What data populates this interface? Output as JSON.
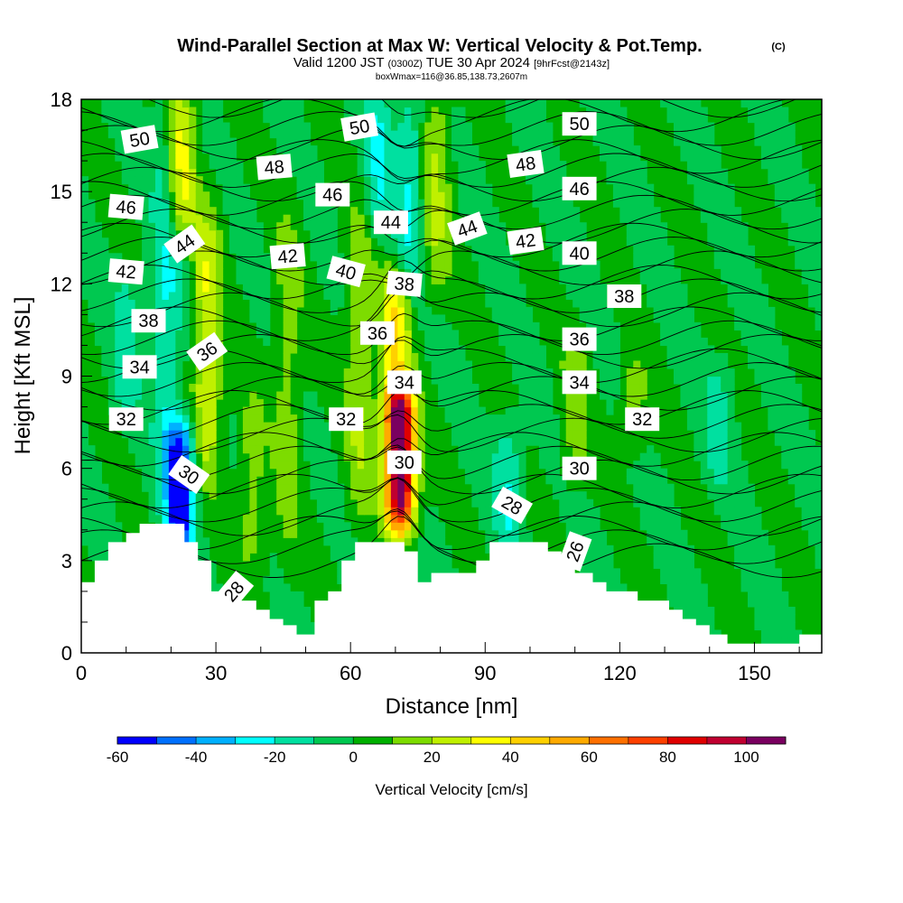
{
  "chart_data": {
    "type": "contour",
    "title": "Wind-Parallel Section at Max W: Vertical Velocity & Pot.Temp.",
    "title_mark": "(C)",
    "subtitle_parts": [
      "Valid 1200 JST",
      "(0300Z)",
      "TUE 30 Apr 2024",
      "[9hrFcst@2143z]"
    ],
    "subtitle2": "boxWmax=116@36.85,138.73,2607m",
    "xlabel": "Distance [nm]",
    "ylabel": "Height [Kft MSL]",
    "xlim": [
      0,
      165
    ],
    "ylim": [
      0,
      18
    ],
    "xticks": [
      0,
      30,
      60,
      90,
      120,
      150
    ],
    "yticks": [
      0,
      3,
      6,
      9,
      12,
      15,
      18
    ],
    "colorbar": {
      "title": "Vertical Velocity [cm/s]",
      "levels": [
        -60,
        -50,
        -40,
        -30,
        -20,
        -10,
        0,
        10,
        20,
        30,
        40,
        50,
        60,
        70,
        80,
        90,
        100,
        110
      ],
      "colors": [
        "#0000ff",
        "#0070ff",
        "#00b0ff",
        "#00ffff",
        "#00e0a0",
        "#00c850",
        "#00b000",
        "#7ddc00",
        "#c0f000",
        "#ffff00",
        "#ffd000",
        "#ffaa00",
        "#ff7000",
        "#ff4000",
        "#e00000",
        "#c00030",
        "#7a0060"
      ],
      "tick_values": [
        -60,
        -40,
        -20,
        0,
        20,
        40,
        60,
        80,
        100
      ]
    },
    "vertical_velocity_features": [
      {
        "x": 22,
        "z0": 14,
        "z1": 18,
        "w": 35
      },
      {
        "x": 28,
        "z0": 6,
        "z1": 14,
        "w": 30
      },
      {
        "x": 10,
        "z0": 8,
        "z1": 12,
        "w": -15
      },
      {
        "x": 22,
        "z0": 3.5,
        "z1": 7,
        "w": -60
      },
      {
        "x": 19,
        "z0": 6,
        "z1": 18,
        "w": -20
      },
      {
        "x": 46,
        "z0": 3.5,
        "z1": 14,
        "w": 15
      },
      {
        "x": 38,
        "z0": 3,
        "z1": 8,
        "w": 15
      },
      {
        "x": 62,
        "z0": 5,
        "z1": 14,
        "w": 20
      },
      {
        "x": 71,
        "z0": 4.5,
        "z1": 8,
        "w": 116
      },
      {
        "x": 70,
        "z0": 8,
        "z1": 12,
        "w": 40
      },
      {
        "x": 73,
        "z0": 12,
        "z1": 18,
        "w": -20
      },
      {
        "x": 79,
        "z0": 12,
        "z1": 18,
        "w": 20
      },
      {
        "x": 66,
        "z0": 14,
        "z1": 18,
        "w": -20
      },
      {
        "x": 95,
        "z0": 4,
        "z1": 7,
        "w": -20
      },
      {
        "x": 110,
        "z0": 6,
        "z1": 10,
        "w": 15
      },
      {
        "x": 123,
        "z0": 7,
        "z1": 9,
        "w": 15
      },
      {
        "x": 142,
        "z0": 6,
        "z1": 9,
        "w": -15
      }
    ],
    "isentropes": [
      26,
      28,
      30,
      32,
      34,
      36,
      38,
      40,
      42,
      44,
      46,
      48,
      50
    ],
    "isentrope_labels": [
      {
        "label": "50",
        "x": 13,
        "z": 16.7,
        "angle": -10
      },
      {
        "label": "50",
        "x": 62,
        "z": 17.1,
        "angle": -10
      },
      {
        "label": "50",
        "x": 111,
        "z": 17.2,
        "angle": 0
      },
      {
        "label": "48",
        "x": 43,
        "z": 15.8,
        "angle": -5
      },
      {
        "label": "48",
        "x": 99,
        "z": 15.9,
        "angle": -8
      },
      {
        "label": "46",
        "x": 10,
        "z": 14.5,
        "angle": 5
      },
      {
        "label": "46",
        "x": 56,
        "z": 14.9,
        "angle": 0
      },
      {
        "label": "46",
        "x": 111,
        "z": 15.1,
        "angle": 0
      },
      {
        "label": "44",
        "x": 23,
        "z": 13.3,
        "angle": -35
      },
      {
        "label": "44",
        "x": 69,
        "z": 14.0,
        "angle": 0
      },
      {
        "label": "44",
        "x": 86,
        "z": 13.8,
        "angle": -20
      },
      {
        "label": "42",
        "x": 10,
        "z": 12.4,
        "angle": 5
      },
      {
        "label": "42",
        "x": 46,
        "z": 12.9,
        "angle": -5
      },
      {
        "label": "42",
        "x": 99,
        "z": 13.4,
        "angle": -8
      },
      {
        "label": "40",
        "x": 59,
        "z": 12.4,
        "angle": 15
      },
      {
        "label": "40",
        "x": 111,
        "z": 13.0,
        "angle": 0
      },
      {
        "label": "38",
        "x": 15,
        "z": 10.8,
        "angle": 0
      },
      {
        "label": "38",
        "x": 72,
        "z": 12.0,
        "angle": 5
      },
      {
        "label": "38",
        "x": 121,
        "z": 11.6,
        "angle": 0
      },
      {
        "label": "36",
        "x": 28,
        "z": 9.8,
        "angle": -35
      },
      {
        "label": "36",
        "x": 66,
        "z": 10.4,
        "angle": 0
      },
      {
        "label": "36",
        "x": 111,
        "z": 10.2,
        "angle": 0
      },
      {
        "label": "34",
        "x": 13,
        "z": 9.3,
        "angle": 0
      },
      {
        "label": "34",
        "x": 72,
        "z": 8.8,
        "angle": 0
      },
      {
        "label": "34",
        "x": 111,
        "z": 8.8,
        "angle": 0
      },
      {
        "label": "32",
        "x": 10,
        "z": 7.6,
        "angle": 0
      },
      {
        "label": "32",
        "x": 59,
        "z": 7.6,
        "angle": 0
      },
      {
        "label": "32",
        "x": 125,
        "z": 7.6,
        "angle": 0
      },
      {
        "label": "30",
        "x": 24,
        "z": 5.8,
        "angle": 35
      },
      {
        "label": "30",
        "x": 72,
        "z": 6.2,
        "angle": 0
      },
      {
        "label": "30",
        "x": 111,
        "z": 6.0,
        "angle": 0
      },
      {
        "label": "28",
        "x": 96,
        "z": 4.8,
        "angle": 30
      },
      {
        "label": "28",
        "x": 34,
        "z": 2.0,
        "angle": -50
      },
      {
        "label": "26",
        "x": 110,
        "z": 3.3,
        "angle": -70
      }
    ],
    "terrain_kft": [
      [
        0,
        2.3
      ],
      [
        3,
        2.3
      ],
      [
        3,
        3.0
      ],
      [
        6,
        3.0
      ],
      [
        6,
        3.6
      ],
      [
        10,
        3.6
      ],
      [
        10,
        3.9
      ],
      [
        13,
        3.9
      ],
      [
        13,
        4.2
      ],
      [
        23,
        4.2
      ],
      [
        23,
        3.6
      ],
      [
        26,
        3.6
      ],
      [
        26,
        3.0
      ],
      [
        29,
        3.0
      ],
      [
        29,
        2.0
      ],
      [
        33,
        2.0
      ],
      [
        33,
        1.7
      ],
      [
        39,
        1.7
      ],
      [
        39,
        1.4
      ],
      [
        42,
        1.4
      ],
      [
        42,
        1.1
      ],
      [
        45,
        1.1
      ],
      [
        45,
        0.9
      ],
      [
        48,
        0.9
      ],
      [
        48,
        0.6
      ],
      [
        52,
        0.6
      ],
      [
        52,
        1.7
      ],
      [
        55,
        1.7
      ],
      [
        55,
        2.0
      ],
      [
        58,
        2.0
      ],
      [
        58,
        3.0
      ],
      [
        61,
        3.0
      ],
      [
        61,
        3.6
      ],
      [
        72,
        3.6
      ],
      [
        72,
        3.3
      ],
      [
        75,
        3.3
      ],
      [
        75,
        2.3
      ],
      [
        78,
        2.3
      ],
      [
        78,
        2.6
      ],
      [
        88,
        2.6
      ],
      [
        88,
        3.0
      ],
      [
        91,
        3.0
      ],
      [
        91,
        3.6
      ],
      [
        104,
        3.6
      ],
      [
        104,
        3.3
      ],
      [
        107,
        3.3
      ],
      [
        107,
        3.0
      ],
      [
        110,
        3.0
      ],
      [
        110,
        2.6
      ],
      [
        114,
        2.6
      ],
      [
        114,
        2.3
      ],
      [
        117,
        2.3
      ],
      [
        117,
        2.0
      ],
      [
        124,
        2.0
      ],
      [
        124,
        1.7
      ],
      [
        131,
        1.7
      ],
      [
        131,
        1.4
      ],
      [
        134,
        1.4
      ],
      [
        134,
        1.1
      ],
      [
        137,
        1.1
      ],
      [
        137,
        0.9
      ],
      [
        140,
        0.9
      ],
      [
        140,
        0.6
      ],
      [
        144,
        0.6
      ],
      [
        144,
        0.3
      ],
      [
        160,
        0.3
      ],
      [
        160,
        0.6
      ],
      [
        165,
        0.6
      ]
    ]
  }
}
